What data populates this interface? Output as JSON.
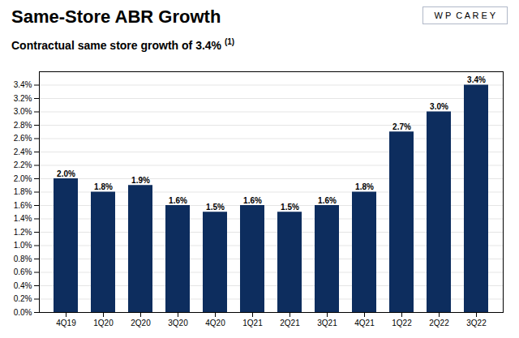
{
  "chart_data": {
    "type": "bar",
    "title": "Same-Store ABR Growth",
    "subtitle": "Contractual same store growth of 3.4%",
    "annotations": [
      "(1)",
      "W P  C A R E Y"
    ],
    "categories": [
      "4Q19",
      "1Q20",
      "2Q20",
      "3Q20",
      "4Q20",
      "1Q21",
      "2Q21",
      "3Q21",
      "4Q21",
      "1Q22",
      "2Q22",
      "3Q22"
    ],
    "values": [
      2.0,
      1.8,
      1.9,
      1.6,
      1.5,
      1.6,
      1.5,
      1.6,
      1.8,
      2.7,
      3.0,
      3.4
    ],
    "value_labels": [
      "2.0%",
      "1.8%",
      "1.9%",
      "1.6%",
      "1.5%",
      "1.6%",
      "1.5%",
      "1.6%",
      "1.8%",
      "2.7%",
      "3.0%",
      "3.4%"
    ],
    "color": "#0d2d5e",
    "ylim": [
      0,
      3.6
    ],
    "yticks": [
      {
        "value": 0.0,
        "label": "0.0%"
      },
      {
        "value": 0.2,
        "label": "0.2%"
      },
      {
        "value": 0.4,
        "label": "0.4%"
      },
      {
        "value": 0.6,
        "label": "0.6%"
      },
      {
        "value": 0.8,
        "label": "0.8%"
      },
      {
        "value": 1.0,
        "label": "1.0%"
      },
      {
        "value": 1.2,
        "label": "1.2%"
      },
      {
        "value": 1.4,
        "label": "1.4%"
      },
      {
        "value": 1.6,
        "label": "1.6%"
      },
      {
        "value": 1.8,
        "label": "1.8%"
      },
      {
        "value": 2.0,
        "label": "2.0%"
      },
      {
        "value": 2.2,
        "label": "2.2%"
      },
      {
        "value": 2.4,
        "label": "2.4%"
      },
      {
        "value": 2.6,
        "label": "2.6%"
      },
      {
        "value": 2.8,
        "label": "2.8%"
      },
      {
        "value": 3.0,
        "label": "3.0%"
      },
      {
        "value": 3.2,
        "label": "3.2%"
      },
      {
        "value": 3.4,
        "label": "3.4%"
      }
    ],
    "grid": true,
    "data_labels": true
  }
}
